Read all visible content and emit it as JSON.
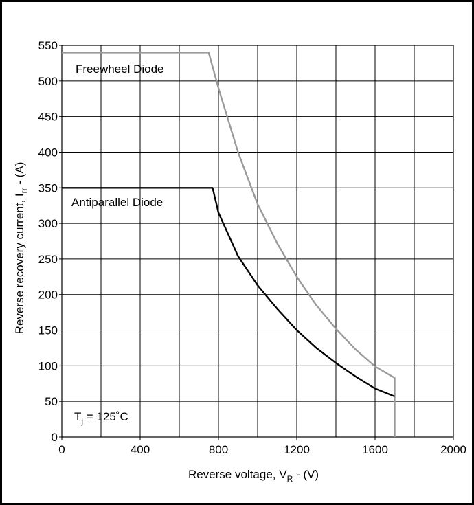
{
  "chart_data": {
    "type": "line",
    "xlabel_main": "Reverse voltage, V",
    "xlabel_sub": "R",
    "xlabel_tail": " - (V)",
    "ylabel_main": "Reverse recovery current, I",
    "ylabel_sub": "rr",
    "ylabel_tail": " - (A)",
    "xlim": [
      0,
      2000
    ],
    "ylim": [
      0,
      550
    ],
    "x_ticks": [
      0,
      400,
      800,
      1200,
      1600,
      2000
    ],
    "y_ticks": [
      0,
      50,
      100,
      150,
      200,
      250,
      300,
      350,
      400,
      450,
      500,
      550
    ],
    "grid": true,
    "x_grid_step": 200,
    "y_grid_step": 50,
    "annotation": {
      "T": "T",
      "sub": "j",
      "rest": " = 125˚C"
    },
    "series": [
      {
        "name": "Freewheel Diode",
        "color": "#9a9a9a",
        "x": [
          0,
          750,
          800,
          900,
          1000,
          1100,
          1200,
          1300,
          1400,
          1500,
          1600,
          1700,
          1700
        ],
        "y": [
          540,
          540,
          490,
          400,
          327,
          272,
          225,
          185,
          152,
          123,
          99,
          83,
          0
        ]
      },
      {
        "name": "Antiparallel Diode",
        "color": "#000000",
        "x": [
          0,
          770,
          800,
          900,
          1000,
          1100,
          1200,
          1300,
          1400,
          1500,
          1600,
          1700
        ],
        "y": [
          350,
          350,
          315,
          254,
          213,
          180,
          150,
          125,
          104,
          85,
          68,
          57
        ]
      }
    ]
  }
}
